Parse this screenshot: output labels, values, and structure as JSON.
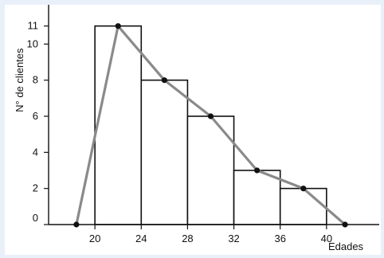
{
  "chart_data": {
    "type": "bar",
    "subtype": "histogram-with-frequency-polygon",
    "xlabel": "Edades",
    "ylabel": "N° de clientes",
    "xlim": [
      16,
      44
    ],
    "ylim": [
      0,
      12
    ],
    "x_ticks": [
      20,
      24,
      28,
      32,
      36,
      40
    ],
    "y_ticks": [
      0,
      2,
      4,
      6,
      8,
      10,
      11
    ],
    "bins": [
      {
        "from": 20,
        "to": 24,
        "value": 11
      },
      {
        "from": 24,
        "to": 28,
        "value": 8
      },
      {
        "from": 28,
        "to": 32,
        "value": 6
      },
      {
        "from": 32,
        "to": 36,
        "value": 3
      },
      {
        "from": 36,
        "to": 40,
        "value": 2
      }
    ],
    "polygon": {
      "x": [
        18.4,
        22,
        26,
        30,
        34,
        38,
        41.6
      ],
      "y": [
        0,
        11,
        8,
        6,
        3,
        2,
        0
      ]
    },
    "grid": false,
    "colors": {
      "bar_fill": "#ffffff",
      "bar_stroke": "#111111",
      "polygon_line": "#8a8a8a",
      "marker": "#111111",
      "axis": "#111111"
    }
  }
}
